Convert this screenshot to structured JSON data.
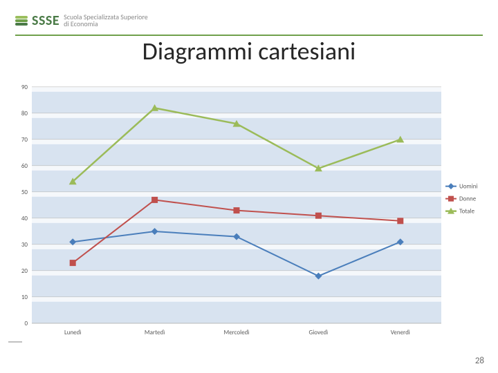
{
  "header": {
    "logo_abbrev": "SSSE",
    "logo_sub_line1": "Scuola Specializzata Superiore",
    "logo_sub_line2": "di Economia",
    "logo_color_abbrev": "#4a7a46",
    "logo_color_sub": "#8a8a8a",
    "logo_bar_colors": [
      "#9bbf5e",
      "#6fa04a",
      "#4a7a46"
    ],
    "underline_color": "#6fa04a",
    "abbrev_fontsize": 20,
    "sub_fontsize": 10
  },
  "title": {
    "text": "Diagrammi cartesiani",
    "fontsize": 36,
    "color": "#262626"
  },
  "chart": {
    "type": "line",
    "plot_background": "#d8e3f0",
    "outer_background": "#ffffff",
    "grid_color": "#b9b9b9",
    "axis_label_color": "#595959",
    "axis_label_fontsize": 9,
    "categories": [
      "Lunedì",
      "Martedì",
      "Mercoledì",
      "Giovedì",
      "Venerdì"
    ],
    "ylim": [
      0,
      90
    ],
    "ytick_step": 10,
    "series": [
      {
        "name": "Uomini",
        "color": "#4a7ebb",
        "marker": "diamond",
        "marker_size": 7,
        "line_width": 2,
        "values": [
          31,
          35,
          33,
          18,
          31
        ]
      },
      {
        "name": "Donne",
        "color": "#c0504d",
        "marker": "square",
        "marker_size": 6,
        "line_width": 2,
        "values": [
          23,
          47,
          43,
          41,
          39
        ]
      },
      {
        "name": "Totale",
        "color": "#9bbb59",
        "marker": "triangle",
        "marker_size": 8,
        "line_width": 2.5,
        "values": [
          54,
          82,
          76,
          59,
          70
        ]
      }
    ],
    "legend": {
      "position": "right",
      "fontsize": 9,
      "text_color": "#595959"
    }
  },
  "page_number": "28"
}
